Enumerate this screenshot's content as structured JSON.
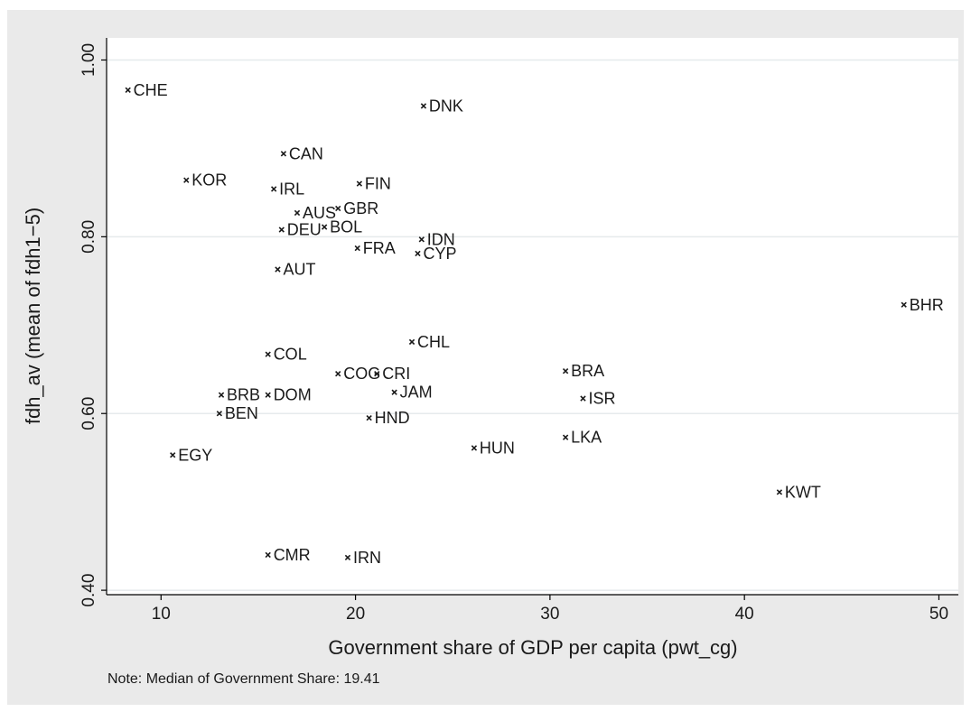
{
  "chart_data": {
    "type": "scatter",
    "xlabel": "Government share of GDP per capita (pwt_cg)",
    "ylabel": "fdh_av (mean of fdh1−5)",
    "note": "Note: Median of Government Share: 19.41",
    "xlim": [
      7.2,
      51
    ],
    "ylim": [
      0.395,
      1.025
    ],
    "xticks": [
      10,
      20,
      30,
      40,
      50
    ],
    "yticks": [
      0.4,
      0.6,
      0.8,
      1.0
    ],
    "xtick_labels": [
      "10",
      "20",
      "30",
      "40",
      "50"
    ],
    "ytick_labels": [
      "0.40",
      "0.60",
      "0.80",
      "1.00"
    ],
    "grid": "horizontal",
    "marker": "x",
    "points": [
      {
        "label": "CHE",
        "x": 8.3,
        "y": 0.966
      },
      {
        "label": "DNK",
        "x": 23.5,
        "y": 0.948
      },
      {
        "label": "CAN",
        "x": 16.3,
        "y": 0.894
      },
      {
        "label": "KOR",
        "x": 11.3,
        "y": 0.864
      },
      {
        "label": "IRL",
        "x": 15.8,
        "y": 0.854
      },
      {
        "label": "FIN",
        "x": 20.2,
        "y": 0.86
      },
      {
        "label": "AUS",
        "x": 17.0,
        "y": 0.827
      },
      {
        "label": "GBR",
        "x": 19.1,
        "y": 0.832
      },
      {
        "label": "DEU",
        "x": 16.2,
        "y": 0.808
      },
      {
        "label": "BOL",
        "x": 18.4,
        "y": 0.811
      },
      {
        "label": "IDN",
        "x": 23.4,
        "y": 0.797
      },
      {
        "label": "FRA",
        "x": 20.1,
        "y": 0.787
      },
      {
        "label": "CYP",
        "x": 23.2,
        "y": 0.781
      },
      {
        "label": "AUT",
        "x": 16.0,
        "y": 0.763
      },
      {
        "label": "BHR",
        "x": 48.2,
        "y": 0.723
      },
      {
        "label": "CHL",
        "x": 22.9,
        "y": 0.681
      },
      {
        "label": "COL",
        "x": 15.5,
        "y": 0.667
      },
      {
        "label": "BRA",
        "x": 30.8,
        "y": 0.648
      },
      {
        "label": "COG",
        "x": 19.1,
        "y": 0.645
      },
      {
        "label": "CRI",
        "x": 21.1,
        "y": 0.645
      },
      {
        "label": "JAM",
        "x": 22.0,
        "y": 0.624
      },
      {
        "label": "ISR",
        "x": 31.7,
        "y": 0.617
      },
      {
        "label": "BRB",
        "x": 13.1,
        "y": 0.621
      },
      {
        "label": "DOM",
        "x": 15.5,
        "y": 0.621
      },
      {
        "label": "BEN",
        "x": 13.0,
        "y": 0.6
      },
      {
        "label": "HND",
        "x": 20.7,
        "y": 0.595
      },
      {
        "label": "LKA",
        "x": 30.8,
        "y": 0.573
      },
      {
        "label": "HUN",
        "x": 26.1,
        "y": 0.561
      },
      {
        "label": "EGY",
        "x": 10.6,
        "y": 0.553
      },
      {
        "label": "KWT",
        "x": 41.8,
        "y": 0.511
      },
      {
        "label": "CMR",
        "x": 15.5,
        "y": 0.44
      },
      {
        "label": "IRN",
        "x": 19.6,
        "y": 0.437
      }
    ]
  }
}
